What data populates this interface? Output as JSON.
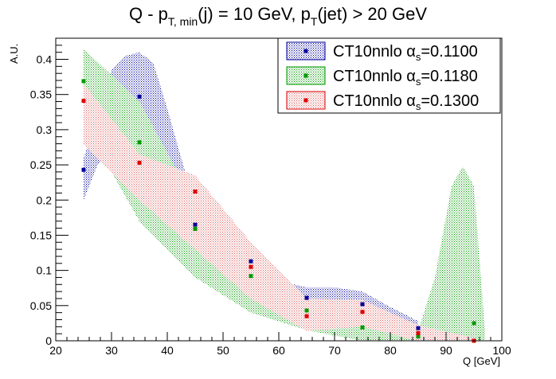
{
  "chart_data": {
    "type": "scatter",
    "title": {
      "prefix": "Q - p",
      "sub1": "T, min",
      "mid": "(j) = 10 GeV, p",
      "sub2": "T",
      "suffix": "(jet) > 20 GeV"
    },
    "xlabel": "Q [GeV]",
    "ylabel": "A.U.",
    "xlim": [
      20,
      100
    ],
    "ylim": [
      0,
      0.43
    ],
    "xticks": [
      {
        "v": 20,
        "label": "20"
      },
      {
        "v": 30,
        "label": "30"
      },
      {
        "v": 40,
        "label": "40"
      },
      {
        "v": 50,
        "label": "50"
      },
      {
        "v": 60,
        "label": "60"
      },
      {
        "v": 70,
        "label": "70"
      },
      {
        "v": 80,
        "label": "80"
      },
      {
        "v": 90,
        "label": "90"
      },
      {
        "v": 100,
        "label": "100"
      }
    ],
    "yticks": [
      {
        "v": 0,
        "label": "0"
      },
      {
        "v": 0.05,
        "label": "0.05"
      },
      {
        "v": 0.1,
        "label": "0.1"
      },
      {
        "v": 0.15,
        "label": "0.15"
      },
      {
        "v": 0.2,
        "label": "0.2"
      },
      {
        "v": 0.25,
        "label": "0.25"
      },
      {
        "v": 0.3,
        "label": "0.3"
      },
      {
        "v": 0.35,
        "label": "0.35"
      },
      {
        "v": 0.4,
        "label": "0.4"
      }
    ],
    "legend_position": "top-right",
    "x": [
      25,
      35,
      45,
      55,
      65,
      75,
      85,
      95
    ],
    "series": [
      {
        "name": "CT10nnlo αs=0.1100",
        "name_main": "CT10nnlo α",
        "name_sub": "s",
        "name_tail": "=0.1100",
        "color": "#000099",
        "values": [
          0.243,
          0.347,
          0.165,
          0.113,
          0.061,
          0.052,
          0.018,
          null
        ],
        "band_x": [
          25,
          27.5,
          30,
          32.5,
          35,
          37.5,
          40,
          45,
          50,
          55,
          60,
          65,
          70,
          75,
          80,
          85,
          85,
          80,
          75,
          70,
          65,
          60,
          55,
          50,
          45,
          40,
          37.5,
          35,
          32.5,
          30,
          27.5,
          25
        ],
        "band_y": [
          0.26,
          0.32,
          0.385,
          0.405,
          0.41,
          0.395,
          0.33,
          0.19,
          0.16,
          0.125,
          0.085,
          0.076,
          0.076,
          0.07,
          0.048,
          0.028,
          0.004,
          0.015,
          0.03,
          0.04,
          0.042,
          0.06,
          0.085,
          0.115,
          0.145,
          0.19,
          0.225,
          0.265,
          0.28,
          0.27,
          0.25,
          0.2
        ]
      },
      {
        "name": "CT10nnlo αs=0.1180",
        "name_main": "CT10nnlo α",
        "name_sub": "s",
        "name_tail": "=0.1180",
        "color": "#009900",
        "values": [
          0.369,
          0.282,
          0.159,
          0.092,
          0.043,
          0.019,
          0.006,
          0.025
        ],
        "band_x": [
          25,
          35,
          45,
          55,
          65,
          75,
          80,
          85,
          88,
          91,
          93,
          95,
          97,
          97,
          95,
          93,
          90,
          85,
          75,
          65,
          55,
          45,
          35,
          25
        ],
        "band_y": [
          0.415,
          0.34,
          0.195,
          0.105,
          0.055,
          0.035,
          0.025,
          0.014,
          0.09,
          0.22,
          0.248,
          0.22,
          0.01,
          0.0,
          0.0,
          0.0,
          0.0,
          0.0,
          0.0,
          0.015,
          0.04,
          0.09,
          0.17,
          0.31
        ]
      },
      {
        "name": "CT10nnlo αs=0.1300",
        "name_main": "CT10nnlo α",
        "name_sub": "s",
        "name_tail": "=0.1300",
        "color": "#dd0000",
        "values": [
          0.341,
          0.253,
          0.212,
          0.105,
          0.035,
          0.041,
          0.011,
          0.0
        ],
        "band_x": [
          25,
          35,
          45,
          55,
          65,
          75,
          85,
          95,
          95,
          85,
          75,
          65,
          55,
          45,
          35,
          25
        ],
        "band_y": [
          0.365,
          0.265,
          0.235,
          0.14,
          0.06,
          0.058,
          0.022,
          0.004,
          0.0,
          0.0,
          0.02,
          0.014,
          0.06,
          0.13,
          0.2,
          0.28
        ]
      }
    ]
  }
}
